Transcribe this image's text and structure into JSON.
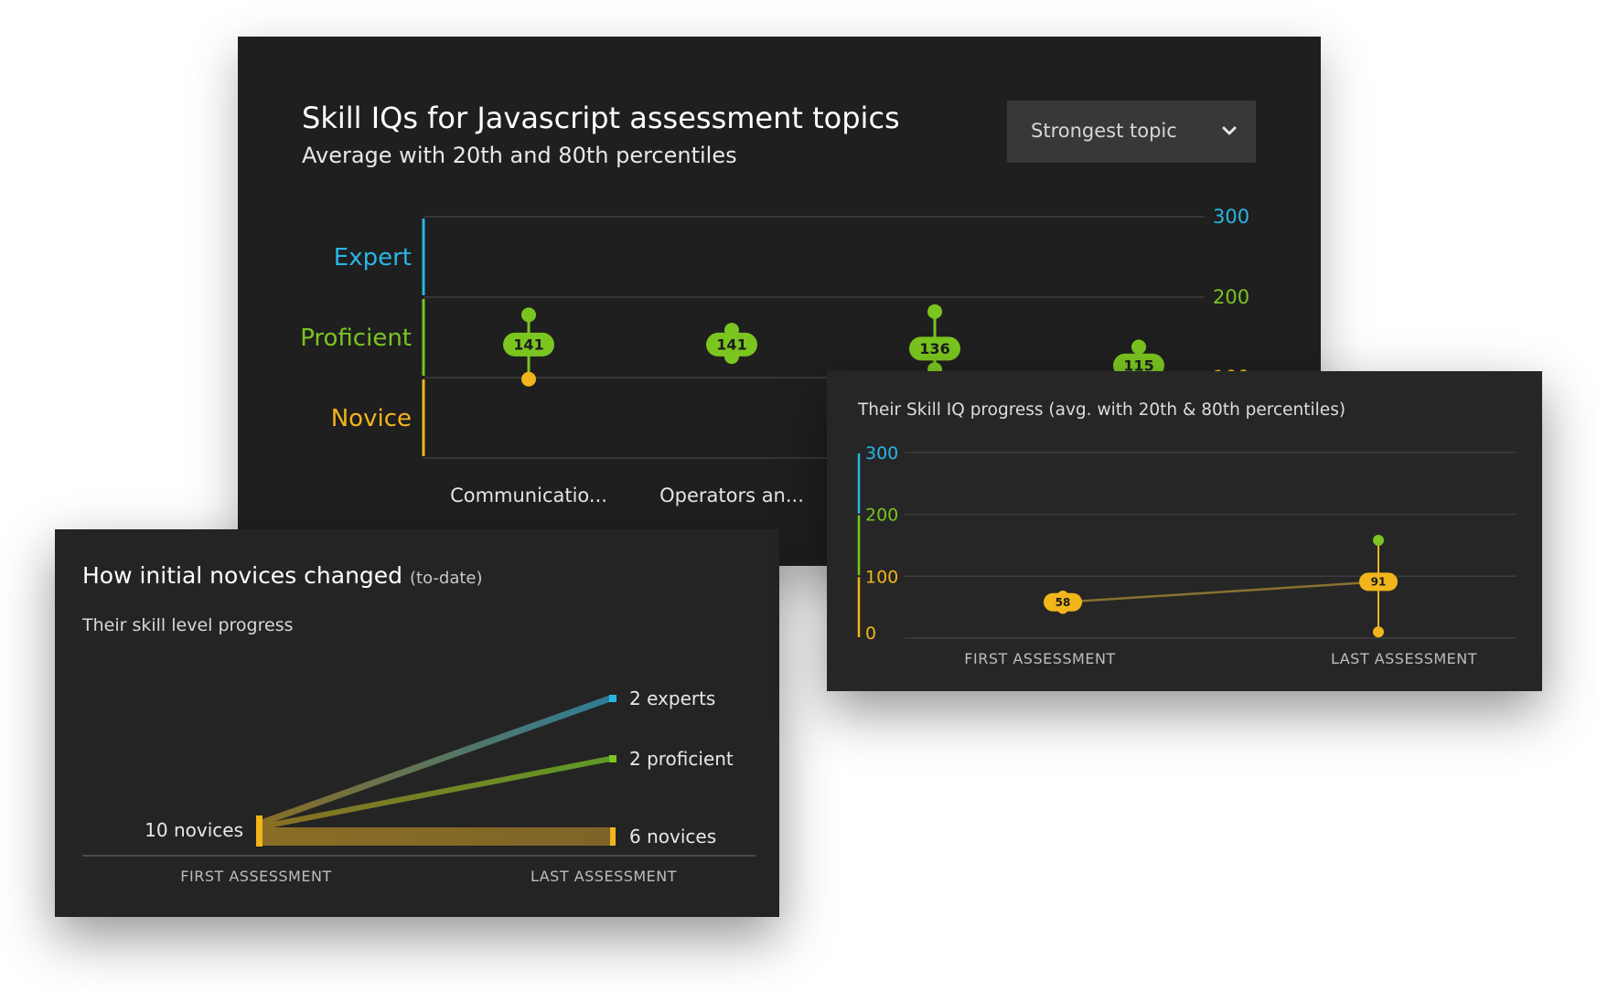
{
  "main": {
    "title": "Skill IQs for Javascript assessment topics",
    "subtitle": "Average with 20th and 80th percentiles",
    "dropdown": {
      "selected": "Strongest topic"
    }
  },
  "novices": {
    "title": "How initial novices changed",
    "title_note": "(to-date)",
    "subtitle": "Their skill level progress"
  },
  "progress": {
    "title": "Their Skill IQ progress (avg. with 20th & 80th percentiles)"
  },
  "colors": {
    "expert": "#29b6e6",
    "proficient": "#7ac520",
    "novice": "#f2b51b",
    "grid": "#3d3d3d",
    "axis_label": "#bdbdbd"
  },
  "chart_data": [
    {
      "type": "scatter",
      "title": "Skill IQs for Javascript assessment topics",
      "subtitle": "Average with 20th and 80th percentiles",
      "levels": [
        {
          "name": "Expert",
          "color": "#29b6e6"
        },
        {
          "name": "Proficient",
          "color": "#7ac520"
        },
        {
          "name": "Novice",
          "color": "#f2b51b"
        }
      ],
      "yticks": [
        {
          "value": 300,
          "label": "300",
          "color": "#29b6e6"
        },
        {
          "value": 200,
          "label": "200",
          "color": "#7ac520"
        },
        {
          "value": 100,
          "label": "100",
          "color": "#f2b51b"
        }
      ],
      "ylim": [
        0,
        300
      ],
      "categories": [
        "Communicatio...",
        "Operators an...",
        "",
        ""
      ],
      "points": [
        {
          "avg": 141,
          "p80": 178,
          "p20": 98,
          "avg_color": "#7ac520",
          "p80_color": "#7ac520",
          "p20_color": "#f2b51b"
        },
        {
          "avg": 141,
          "p80": 159,
          "p20": 126,
          "avg_color": "#7ac520",
          "p80_color": "#7ac520",
          "p20_color": "#7ac520"
        },
        {
          "avg": 136,
          "p80": 182,
          "p20": 110,
          "avg_color": "#7ac520",
          "p80_color": "#7ac520",
          "p20_color": "#7ac520"
        },
        {
          "avg": 115,
          "p80": 138,
          "p20": 100,
          "avg_color": "#7ac520",
          "p80_color": "#7ac520",
          "p20_color": "#7ac520"
        }
      ],
      "grid": true
    },
    {
      "type": "line",
      "title": "How initial novices changed (to-date)",
      "subtitle": "Their skill level progress",
      "categories": [
        "FIRST ASSESSMENT",
        "LAST ASSESSMENT"
      ],
      "start": {
        "label": "10 novices",
        "count": 10
      },
      "flows": [
        {
          "label": "2 experts",
          "count": 2,
          "color": "#29b6e6",
          "end_level": "expert"
        },
        {
          "label": "2 proficient",
          "count": 2,
          "color": "#7ac520",
          "end_level": "proficient"
        },
        {
          "label": "6 novices",
          "count": 6,
          "color": "#f2b51b",
          "end_level": "novice"
        }
      ]
    },
    {
      "type": "line",
      "title": "Their Skill IQ progress (avg. with 20th & 80th percentiles)",
      "categories": [
        "FIRST ASSESSMENT",
        "LAST ASSESSMENT"
      ],
      "ylim": [
        0,
        300
      ],
      "yticks": [
        {
          "value": 300,
          "label": "300",
          "color": "#29b6e6"
        },
        {
          "value": 200,
          "label": "200",
          "color": "#7ac520"
        },
        {
          "value": 100,
          "label": "100",
          "color": "#f2b51b"
        },
        {
          "value": 0,
          "label": "0",
          "color": "#f2b51b"
        }
      ],
      "series": [
        {
          "avg": 58,
          "p80": 68,
          "p20": 48,
          "color": "#f2b51b",
          "p80_color": "#f2b51b",
          "p20_color": "#f2b51b"
        },
        {
          "avg": 91,
          "p80": 158,
          "p20": 10,
          "color": "#f2b51b",
          "p80_color": "#7ac520",
          "p20_color": "#f2b51b"
        }
      ],
      "grid": true
    }
  ]
}
